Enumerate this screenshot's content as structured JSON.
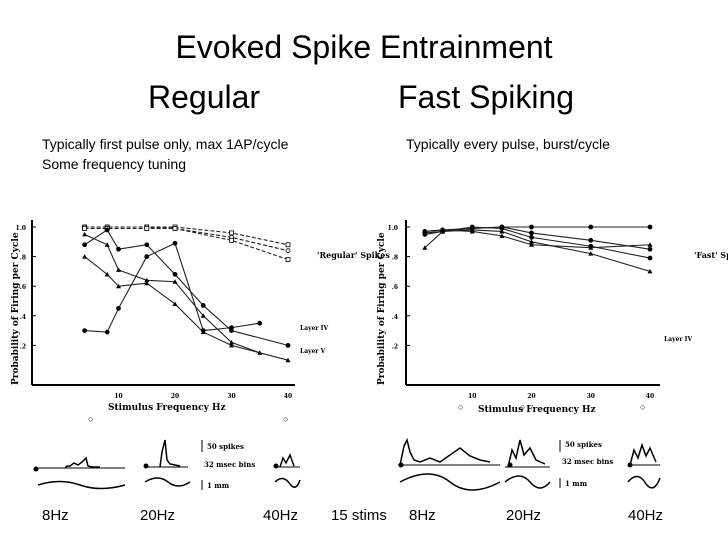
{
  "slide": {
    "title": "Evoked Spike Entrainment",
    "subtitle_left": "Regular",
    "subtitle_right": "Fast Spiking",
    "note_left_1": "Typically first pulse only, max 1AP/cycle",
    "note_left_2": "Some frequency tuning",
    "note_right": "Typically every pulse, burst/cycle"
  },
  "bottom_labels": [
    "8Hz",
    "20Hz",
    "40Hz",
    "15 stims",
    "8Hz",
    "20Hz",
    "40Hz"
  ],
  "chart_data": [
    {
      "type": "line",
      "ylabel": "Probability of Firing per Cycle",
      "xlabel": "Stimulus Frequency Hz",
      "xlim": [
        0,
        40
      ],
      "ylim": [
        0,
        1.0
      ],
      "x_ticks": [
        "10",
        "20",
        "30",
        "40"
      ],
      "y_ticks": [
        ".2",
        ".4",
        ".6",
        ".8",
        "1.0"
      ],
      "legend_title": "'Regular' Spikes",
      "legend": [
        "Layer IV",
        "Layer V"
      ],
      "series": [
        {
          "x": [
            4,
            8,
            15,
            20,
            30,
            40
          ],
          "y": [
            1.0,
            1.0,
            1.0,
            1.0,
            0.96,
            0.88
          ]
        },
        {
          "x": [
            4,
            8,
            15,
            20,
            30,
            40
          ],
          "y": [
            1.0,
            1.0,
            1.0,
            0.99,
            0.93,
            0.84
          ]
        },
        {
          "x": [
            4,
            8,
            15,
            20,
            30,
            40
          ],
          "y": [
            0.99,
            0.99,
            0.99,
            0.99,
            0.91,
            0.78
          ]
        },
        {
          "x": [
            4,
            8,
            10,
            15,
            20,
            25,
            30,
            35
          ],
          "y": [
            0.95,
            0.88,
            0.71,
            0.64,
            0.63,
            0.4,
            0.22,
            0.15
          ]
        },
        {
          "x": [
            4,
            8,
            10,
            15,
            20,
            25,
            30,
            40
          ],
          "y": [
            0.88,
            0.98,
            0.85,
            0.88,
            0.68,
            0.47,
            0.3,
            0.2
          ]
        },
        {
          "x": [
            4,
            8,
            10,
            15,
            20,
            25,
            30,
            40
          ],
          "y": [
            0.8,
            0.68,
            0.6,
            0.62,
            0.48,
            0.29,
            0.2,
            0.1
          ]
        },
        {
          "x": [
            4,
            8,
            10,
            15,
            20,
            25,
            30,
            35
          ],
          "y": [
            0.3,
            0.29,
            0.45,
            0.8,
            0.89,
            0.3,
            0.32,
            0.35
          ]
        }
      ]
    },
    {
      "type": "line",
      "ylabel": "Probability of Firing per Cycle",
      "xlabel": "Stimulus Frequency Hz",
      "xlim": [
        0,
        40
      ],
      "ylim": [
        0,
        1.0
      ],
      "x_ticks": [
        "10",
        "20",
        "30",
        "40"
      ],
      "y_ticks": [
        ".2",
        ".4",
        ".6",
        ".8",
        "1.0"
      ],
      "legend_title": "'Fast' Spikes",
      "legend": [
        "Layer IV"
      ],
      "series": [
        {
          "x": [
            2,
            5,
            10,
            15,
            20,
            30,
            40
          ],
          "y": [
            0.97,
            0.98,
            0.99,
            1.0,
            1.0,
            1.0,
            1.0
          ]
        },
        {
          "x": [
            2,
            5,
            10,
            15,
            20,
            30,
            40
          ],
          "y": [
            0.96,
            0.97,
            0.99,
            1.0,
            0.96,
            0.91,
            0.85
          ]
        },
        {
          "x": [
            2,
            5,
            10,
            15,
            20,
            30,
            40
          ],
          "y": [
            0.95,
            0.97,
            1.0,
            0.99,
            0.93,
            0.87,
            0.79
          ]
        },
        {
          "x": [
            2,
            5,
            10,
            15,
            20,
            30,
            40
          ],
          "y": [
            0.86,
            0.97,
            0.98,
            0.97,
            0.9,
            0.82,
            0.7
          ]
        },
        {
          "x": [
            2,
            5,
            10,
            15,
            20,
            30,
            40
          ],
          "y": [
            0.97,
            0.98,
            0.97,
            0.94,
            0.88,
            0.86,
            0.88
          ]
        }
      ]
    }
  ],
  "histogram_legend": {
    "left": [
      "50 spikes",
      "32 msec bins",
      "1 mm"
    ],
    "right": [
      "50 spikes",
      "32 msec bins",
      "1 mm"
    ]
  }
}
